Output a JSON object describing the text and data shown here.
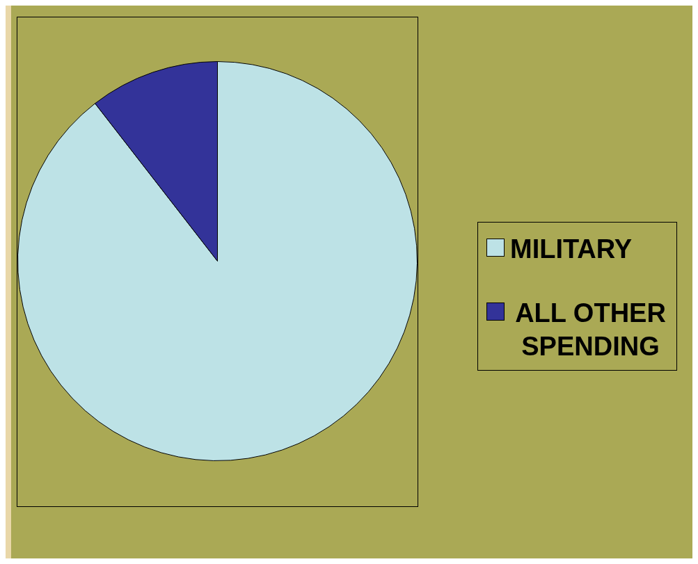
{
  "chart_data": {
    "type": "pie",
    "categories": [
      "MILITARY",
      "ALL OTHER SPENDING"
    ],
    "values": [
      89.5,
      10.5
    ],
    "colors": [
      "#bde2e6",
      "#333399"
    ],
    "legend": "right"
  }
}
